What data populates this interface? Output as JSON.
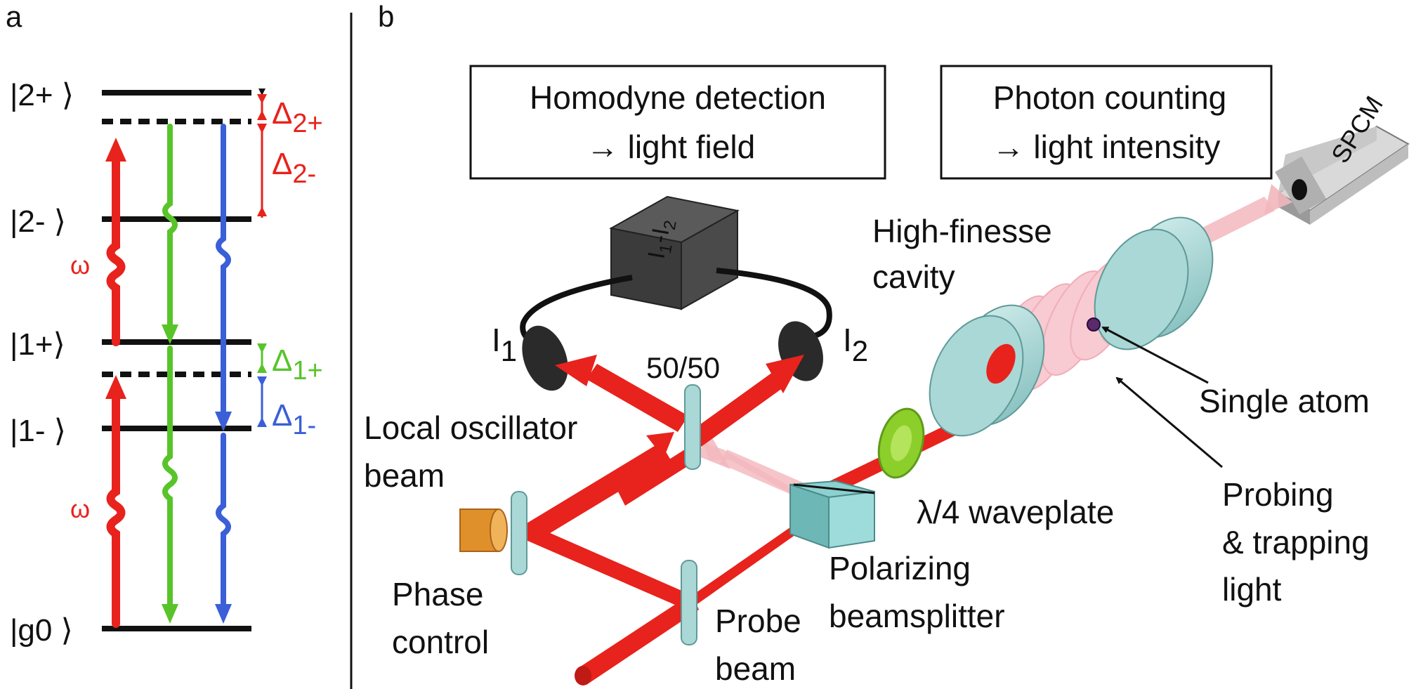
{
  "panel_a": {
    "label": "a",
    "levels": {
      "two_plus": "|2+ ⟩",
      "two_minus": "|2- ⟩",
      "one_plus": "|1+⟩",
      "one_minus": "|1- ⟩",
      "ground": "|g0 ⟩"
    },
    "omega": "ω",
    "detunings": {
      "d2p_sym": "Δ",
      "d2p_sub": "2+",
      "d2m_sym": "Δ",
      "d2m_sub": "2-",
      "d1p_sym": "Δ",
      "d1p_sub": "1+",
      "d1m_sym": "Δ",
      "d1m_sub": "1-"
    },
    "colors": {
      "red": "#e8221c",
      "green": "#58c42a",
      "blue": "#3a5fd8"
    }
  },
  "panel_b": {
    "label": "b",
    "homodyne_box": {
      "line1": "Homodyne detection",
      "line2": "→ light field"
    },
    "counting_box": {
      "line1": "Photon counting",
      "line2": "→ light intensity"
    },
    "spcm": "SPCM",
    "detector_cube": {
      "i1": "I",
      "s1": "1",
      "dash": "-",
      "i2": "I",
      "s2": "2"
    },
    "detector_1": {
      "i": "I",
      "sub": "1"
    },
    "detector_2": {
      "i": "I",
      "sub": "2"
    },
    "splitter": "50/50",
    "local_oscillator": {
      "line1": "Local oscillator",
      "line2": "beam"
    },
    "phase_control": {
      "line1": "Phase",
      "line2": "control"
    },
    "probe_beam": {
      "line1": "Probe",
      "line2": "beam"
    },
    "pbs": {
      "line1": "Polarizing",
      "line2": "beamsplitter"
    },
    "waveplate": "λ/4 waveplate",
    "cavity": {
      "line1": "High-finesse",
      "line2": "cavity"
    },
    "atom": "Single atom",
    "trapping": {
      "line1": "Probing",
      "line2": "& trapping",
      "line3": "light"
    },
    "colors": {
      "beam": "#e8221c",
      "optic": "#a9d8d6",
      "waveplate": "#8ccf2a",
      "lens": "#e0902a"
    }
  }
}
